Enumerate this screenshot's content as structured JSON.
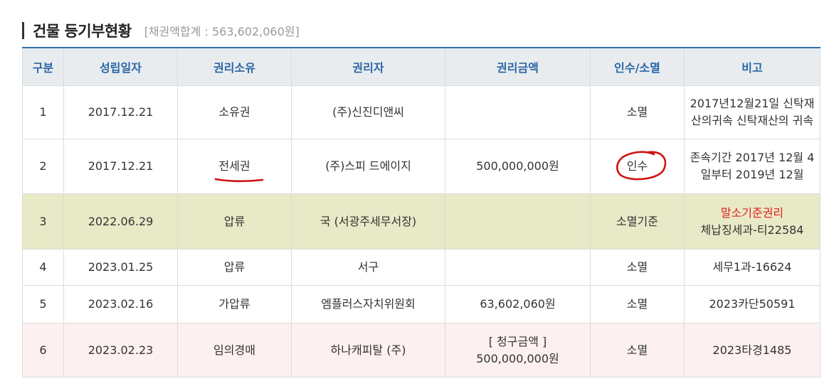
{
  "header": {
    "title": "건물 등기부현황",
    "subtitle": "[채권액합계 : 563,602,060원]"
  },
  "columns": [
    "구분",
    "성립일자",
    "권리소유",
    "권리자",
    "권리금액",
    "인수/소멸",
    "비고"
  ],
  "rows": [
    {
      "no": "1",
      "date": "2017.12.21",
      "type": "소유권",
      "holder": "(주)신진디앤씨",
      "amount": "",
      "status": "소멸",
      "note1": "2017년12월21일 신탁재",
      "note2": "산의귀속 신탁재산의 귀속"
    },
    {
      "no": "2",
      "date": "2017.12.21",
      "type": "전세권",
      "holder": "(주)스피 드에이지",
      "amount": "500,000,000원",
      "status": "인수",
      "note1": "존속기간 2017년 12월 4",
      "note2": "일부터 2019년 12월"
    },
    {
      "no": "3",
      "date": "2022.06.29",
      "type": "압류",
      "holder": "국 (서광주세무서장)",
      "amount": "",
      "status": "소멸기준",
      "note1": "말소기준권리",
      "note2": "체납징세과-티22584"
    },
    {
      "no": "4",
      "date": "2023.01.25",
      "type": "압류",
      "holder": "서구",
      "amount": "",
      "status": "소멸",
      "note1": "세무1과-16624"
    },
    {
      "no": "5",
      "date": "2023.02.16",
      "type": "가압류",
      "holder": "엠플러스자치위원회",
      "amount": "63,602,060원",
      "status": "소멸",
      "note1": "2023카단50591"
    },
    {
      "no": "6",
      "date": "2023.02.23",
      "type": "임의경매",
      "holder": "하나캐피탈 (주)",
      "amount1": "[ 청구금액 ]",
      "amount2": "500,000,000원",
      "status": "소멸",
      "note1": "2023타경1485"
    }
  ],
  "colors": {
    "accent": "#2a66a6",
    "highlight_row": "#e8e9c6",
    "auction_row": "#fdf0f0",
    "alert": "#e02020",
    "annotation": "#d01010"
  }
}
